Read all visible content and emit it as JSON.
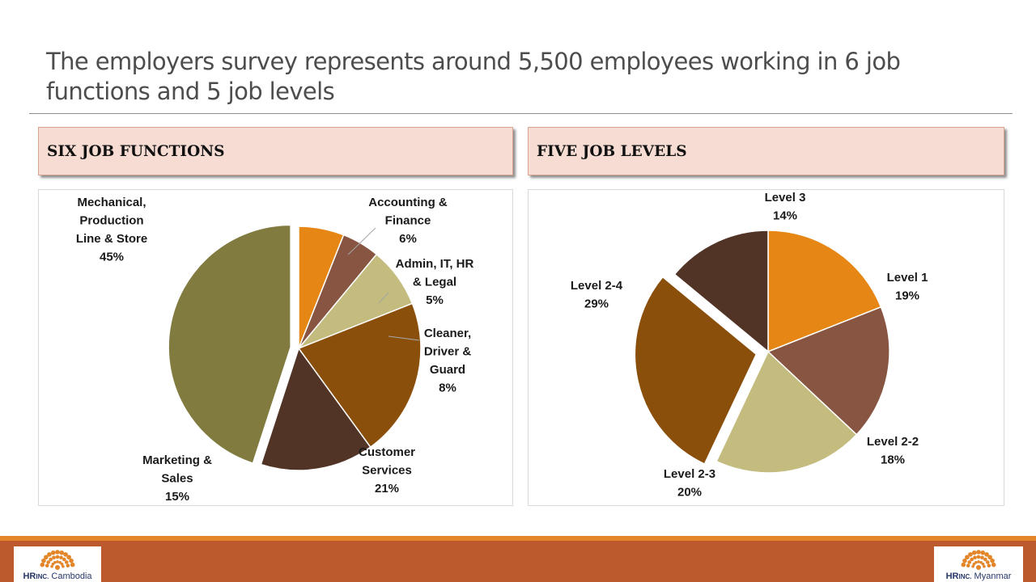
{
  "slide": {
    "title": "The employers survey represents around 5,500 employees working in 6 job functions and 5 job levels"
  },
  "left_section": {
    "header": "SIX JOB FUNCTIONS"
  },
  "right_section": {
    "header": "FIVE JOB LEVELS"
  },
  "chart_data": [
    {
      "type": "pie",
      "title": "SIX JOB FUNCTIONS",
      "slices": [
        {
          "label": "Accounting & Finance",
          "lines": [
            "Accounting &",
            "Finance",
            "6%"
          ],
          "value": 6,
          "color": "#e68715"
        },
        {
          "label": "Admin, IT, HR & Legal",
          "lines": [
            "Admin, IT, HR",
            "& Legal",
            "5%"
          ],
          "value": 5,
          "color": "#875541"
        },
        {
          "label": "Cleaner, Driver & Guard",
          "lines": [
            "Cleaner,",
            "Driver &",
            "Guard",
            "8%"
          ],
          "value": 8,
          "color": "#c4bc7f"
        },
        {
          "label": "Customer Services",
          "lines": [
            "Customer",
            "Services",
            "21%"
          ],
          "value": 21,
          "color": "#8b4f0c"
        },
        {
          "label": "Marketing & Sales",
          "lines": [
            "Marketing &",
            "Sales",
            "15%"
          ],
          "value": 15,
          "color": "#523427"
        },
        {
          "label": "Mechanical, Production Line & Store",
          "lines": [
            "Mechanical,",
            "Production",
            "Line & Store",
            "45%"
          ],
          "value": 45,
          "color": "#827b40",
          "exploded": true
        }
      ]
    },
    {
      "type": "pie",
      "title": "FIVE JOB LEVELS",
      "slices": [
        {
          "label": "Level 1",
          "lines": [
            "Level 1",
            "19%"
          ],
          "value": 19,
          "color": "#e68715"
        },
        {
          "label": "Level 2-2",
          "lines": [
            "Level 2-2",
            "18%"
          ],
          "value": 18,
          "color": "#875541"
        },
        {
          "label": "Level 2-3",
          "lines": [
            "Level 2-3",
            "20%"
          ],
          "value": 20,
          "color": "#c4bc7f"
        },
        {
          "label": "Level 2-4",
          "lines": [
            "Level 2-4",
            "29%"
          ],
          "value": 29,
          "color": "#8b4f0c",
          "exploded": true
        },
        {
          "label": "Level 3",
          "lines": [
            "Level 3",
            "14%"
          ],
          "value": 14,
          "color": "#523427"
        }
      ]
    }
  ],
  "footer": {
    "logo_left": {
      "brand": "HR",
      "inc": "INC.",
      "city": "Cambodia"
    },
    "logo_right": {
      "brand": "HR",
      "inc": "INC.",
      "city": "Myanmar"
    },
    "accent_color": "#e3862a",
    "bar_color": "#bd5a2d"
  }
}
